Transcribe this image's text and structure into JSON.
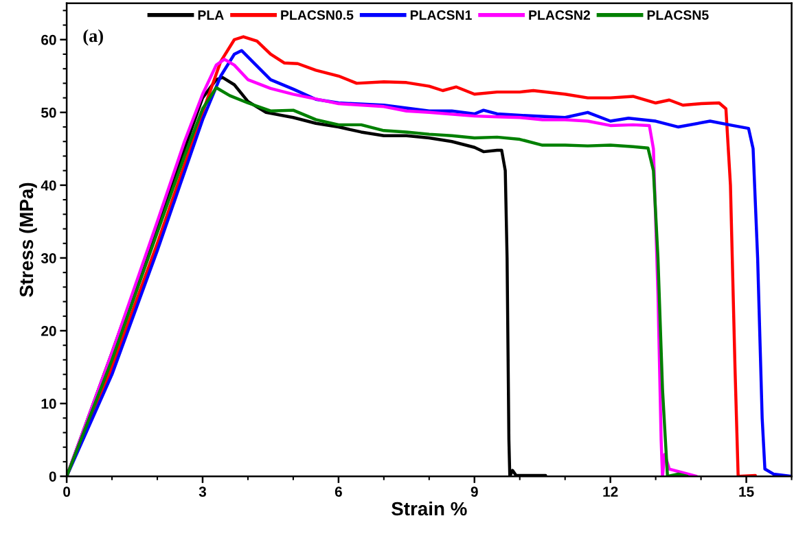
{
  "chart_data": {
    "type": "line",
    "xlabel": "Strain %",
    "ylabel": "Stress (MPa)",
    "annotations": [
      "(a)"
    ],
    "xlim": [
      0,
      16
    ],
    "ylim": [
      0,
      65
    ],
    "xticks": [
      0,
      3,
      6,
      9,
      12,
      15
    ],
    "yticks": [
      0,
      10,
      20,
      30,
      40,
      50,
      60
    ],
    "grid": false,
    "legend": "top",
    "marker": "none",
    "line_style": "solid",
    "series": [
      {
        "name": "PLA",
        "color": "#000000",
        "x": [
          0,
          1,
          3,
          3.3,
          3.44,
          3.7,
          4,
          4.4,
          5,
          5.5,
          6,
          6.5,
          7,
          7.5,
          8,
          8.5,
          9,
          9.2,
          9.5,
          9.6,
          9.68,
          9.72,
          9.76,
          9.78,
          9.84,
          9.92,
          10.57
        ],
        "values": [
          0,
          17,
          52,
          54.5,
          54.8,
          53.8,
          51.5,
          50,
          49.3,
          48.5,
          48,
          47.3,
          46.8,
          46.8,
          46.5,
          46,
          45.2,
          44.6,
          44.8,
          44.8,
          42,
          30,
          5,
          0,
          0.8,
          0.1,
          0.1
        ]
      },
      {
        "name": "PLACSN0.5",
        "color": "#ff0000",
        "x": [
          0,
          1,
          2,
          2.5,
          3,
          3.4,
          3.7,
          3.9,
          4.2,
          4.5,
          4.8,
          5.1,
          5.5,
          6,
          6.4,
          7,
          7.5,
          8,
          8.3,
          8.6,
          9,
          9.5,
          10,
          10.3,
          11,
          11.5,
          12,
          12.5,
          13,
          13.3,
          13.6,
          14,
          14.4,
          14.55,
          14.65,
          14.75,
          14.82,
          15.2
        ],
        "values": [
          0,
          15,
          32,
          41,
          50,
          57,
          60,
          60.4,
          59.8,
          58,
          56.8,
          56.7,
          55.8,
          55,
          54,
          54.2,
          54.1,
          53.6,
          53,
          53.5,
          52.5,
          52.8,
          52.8,
          53,
          52.5,
          52,
          52,
          52.2,
          51.3,
          51.7,
          51,
          51.2,
          51.3,
          50.5,
          40,
          15,
          0,
          0.1
        ]
      },
      {
        "name": "PLACSN1",
        "color": "#0000ff",
        "x": [
          0,
          1,
          2,
          2.5,
          3,
          3.4,
          3.7,
          3.86,
          4.1,
          4.5,
          5,
          5.5,
          6,
          7,
          8,
          8.5,
          9,
          9.2,
          9.5,
          10,
          11,
          11.5,
          12,
          12.4,
          13,
          13.5,
          14.2,
          14.7,
          15.05,
          15.15,
          15.25,
          15.35,
          15.41,
          15.6,
          16
        ],
        "values": [
          0,
          14,
          31,
          40,
          49,
          55,
          58,
          58.5,
          57,
          54.5,
          53.2,
          51.8,
          51.3,
          51,
          50.2,
          50.2,
          49.8,
          50.3,
          49.8,
          49.6,
          49.3,
          50,
          48.8,
          49.2,
          48.8,
          48,
          48.8,
          48.2,
          47.8,
          45,
          30,
          8,
          1,
          0.3,
          0
        ]
      },
      {
        "name": "PLACSN2",
        "color": "#ff00ff",
        "x": [
          0,
          1,
          2,
          2.6,
          3,
          3.3,
          3.48,
          3.7,
          4,
          4.5,
          5,
          6,
          7,
          7.5,
          8,
          9,
          9.5,
          10,
          10.5,
          11,
          11.5,
          12,
          12.5,
          12.86,
          12.95,
          13.05,
          13.12,
          13.15,
          13.2,
          13.3,
          13.6,
          13.9
        ],
        "values": [
          0,
          17,
          35,
          46,
          52.5,
          56.5,
          57.3,
          56.5,
          54.5,
          53.3,
          52.5,
          51.2,
          50.8,
          50.2,
          50,
          49.5,
          49.4,
          49.3,
          49,
          49,
          48.8,
          48.2,
          48.3,
          48.2,
          45,
          25,
          5,
          0,
          3,
          1,
          0.5,
          0
        ]
      },
      {
        "name": "PLACSN5",
        "color": "#008000",
        "x": [
          0,
          1,
          2,
          2.6,
          3,
          3.3,
          3.6,
          4,
          4.5,
          5,
          5.5,
          6,
          6.5,
          7,
          7.5,
          8,
          8.5,
          9,
          9.5,
          10,
          10.5,
          11,
          11.5,
          12,
          12.5,
          12.83,
          12.95,
          13.05,
          13.15,
          13.26,
          13.5,
          13.7
        ],
        "values": [
          0,
          16,
          33.5,
          44,
          50.5,
          53.4,
          52.3,
          51.3,
          50.2,
          50.3,
          49,
          48.3,
          48.3,
          47.5,
          47.3,
          47,
          46.8,
          46.5,
          46.6,
          46.3,
          45.5,
          45.5,
          45.4,
          45.5,
          45.3,
          45.1,
          42,
          30,
          12,
          0,
          0.3,
          0
        ]
      }
    ]
  }
}
